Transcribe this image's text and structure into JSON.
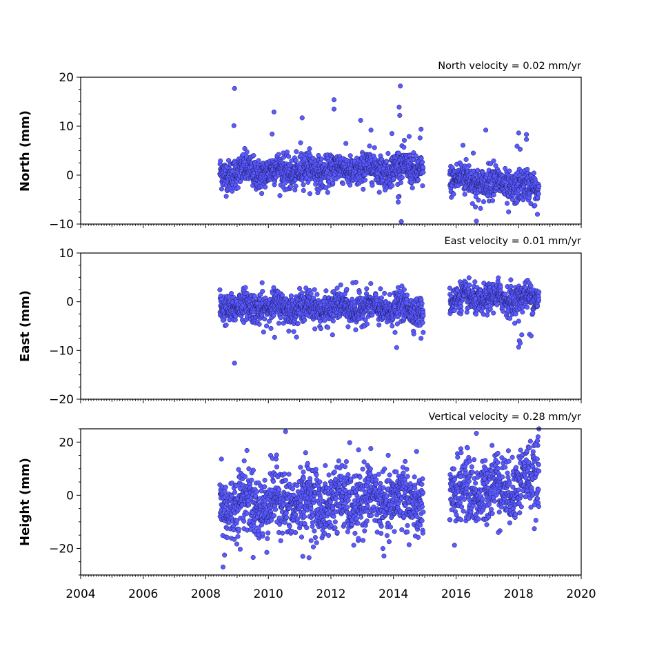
{
  "chart_data": [
    {
      "type": "scatter",
      "panel": "north",
      "ylabel": "North (mm)",
      "velocity_label": "North velocity = 0.02 mm/yr",
      "xlim": [
        2004,
        2020
      ],
      "ylim": [
        -10,
        20
      ],
      "yticks": [
        -10,
        0,
        10,
        20
      ],
      "color": "#5a5aff",
      "segments": [
        {
          "start": 2008.45,
          "end": 2014.95,
          "trend": [
            0.5,
            1.5
          ],
          "noise": 1.6
        },
        {
          "start": 2015.8,
          "end": 2018.65,
          "trend": [
            -0.5,
            -3.0
          ],
          "noise": 1.6
        }
      ],
      "outliers": [
        [
          2008.92,
          17.7
        ],
        [
          2008.9,
          10.1
        ],
        [
          2010.18,
          12.9
        ],
        [
          2010.12,
          8.4
        ],
        [
          2011.08,
          11.7
        ],
        [
          2011.03,
          6.6
        ],
        [
          2012.1,
          15.4
        ],
        [
          2012.1,
          13.5
        ],
        [
          2012.95,
          11.2
        ],
        [
          2013.28,
          9.2
        ],
        [
          2013.95,
          8.5
        ],
        [
          2014.22,
          18.2
        ],
        [
          2014.18,
          13.9
        ],
        [
          2014.2,
          12.2
        ],
        [
          2014.5,
          7.9
        ],
        [
          2014.88,
          9.4
        ],
        [
          2014.85,
          7.6
        ],
        [
          2014.15,
          -4.5
        ],
        [
          2014.15,
          -5.5
        ],
        [
          2014.25,
          -9.5
        ],
        [
          2016.22,
          6.1
        ],
        [
          2016.55,
          4.5
        ],
        [
          2016.65,
          -9.4
        ],
        [
          2016.62,
          -6.5
        ],
        [
          2016.95,
          9.2
        ],
        [
          2017.2,
          2.9
        ],
        [
          2017.68,
          -7.5
        ],
        [
          2017.95,
          5.9
        ],
        [
          2018.0,
          8.6
        ],
        [
          2018.05,
          5.3
        ],
        [
          2018.25,
          8.3
        ],
        [
          2018.25,
          7.3
        ],
        [
          2018.6,
          -8.0
        ],
        [
          2016.35,
          1.5
        ],
        [
          2016.28,
          -3.9
        ]
      ]
    },
    {
      "type": "scatter",
      "panel": "east",
      "ylabel": "East (mm)",
      "velocity_label": "East velocity = 0.01 mm/yr",
      "xlim": [
        2004,
        2020
      ],
      "ylim": [
        -20,
        10
      ],
      "yticks": [
        -20,
        -10,
        0,
        10
      ],
      "color": "#5a5aff",
      "segments": [
        {
          "start": 2008.45,
          "end": 2014.95,
          "trend": [
            -1.0,
            -1.5
          ],
          "noise": 1.5
        },
        {
          "start": 2015.8,
          "end": 2018.65,
          "trend": [
            0.5,
            0.8
          ],
          "noise": 1.4
        }
      ],
      "outliers": [
        [
          2008.92,
          -12.6
        ],
        [
          2009.8,
          3.9
        ],
        [
          2010.2,
          -7.3
        ],
        [
          2012.05,
          -6.8
        ],
        [
          2012.7,
          3.9
        ],
        [
          2012.8,
          4.0
        ],
        [
          2014.1,
          -9.4
        ],
        [
          2014.05,
          -6.3
        ],
        [
          2014.88,
          -7.5
        ],
        [
          2014.95,
          -6.3
        ],
        [
          2017.35,
          4.9
        ],
        [
          2017.75,
          4.5
        ],
        [
          2018.0,
          -4.0
        ],
        [
          2018.02,
          -8.0
        ],
        [
          2018.0,
          -9.3
        ],
        [
          2018.05,
          -8.5
        ],
        [
          2018.1,
          -6.8
        ],
        [
          2018.35,
          -6.7
        ],
        [
          2018.4,
          -7.0
        ],
        [
          2008.55,
          -3.8
        ]
      ]
    },
    {
      "type": "scatter",
      "panel": "height",
      "ylabel": "Height (mm)",
      "velocity_label": "Vertical velocity = 0.28 mm/yr",
      "xlim": [
        2004,
        2020
      ],
      "ylim": [
        -30,
        25
      ],
      "yticks": [
        -20,
        0,
        20
      ],
      "color": "#5a5aff",
      "segments": [
        {
          "start": 2008.45,
          "end": 2014.95,
          "trend": [
            -3.0,
            -2.0
          ],
          "noise": 6.0
        },
        {
          "start": 2015.8,
          "end": 2018.65,
          "trend": [
            0.0,
            6.0
          ],
          "noise": 6.0
        }
      ],
      "outliers": [
        [
          2008.55,
          -27.0
        ],
        [
          2008.6,
          -22.5
        ],
        [
          2010.55,
          24.0
        ],
        [
          2011.3,
          -23.5
        ],
        [
          2011.1,
          -23.0
        ],
        [
          2009.95,
          -21.5
        ],
        [
          2012.6,
          19.8
        ],
        [
          2016.65,
          23.3
        ],
        [
          2018.65,
          25.0
        ],
        [
          2018.62,
          22.0
        ],
        [
          2018.6,
          20.5
        ],
        [
          2018.55,
          19.0
        ],
        [
          2015.95,
          -18.8
        ],
        [
          2014.5,
          -18.6
        ],
        [
          2009.1,
          -20.3
        ],
        [
          2008.5,
          13.6
        ],
        [
          2016.05,
          14.3
        ],
        [
          2017.35,
          -14.0
        ],
        [
          2014.3,
          10.5
        ],
        [
          2012.2,
          -14.0
        ]
      ]
    }
  ],
  "xaxis": {
    "tick_labels": [
      "2004",
      "2006",
      "2008",
      "2010",
      "2012",
      "2014",
      "2016",
      "2018",
      "2020"
    ]
  }
}
